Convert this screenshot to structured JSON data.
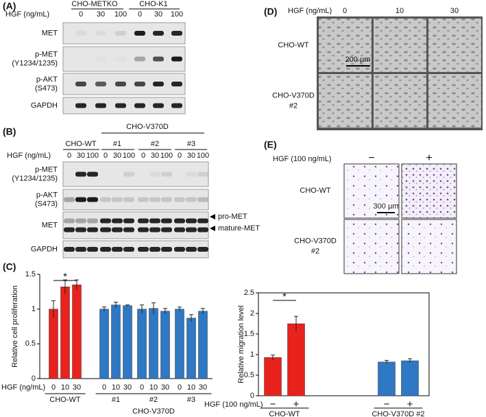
{
  "panel_a": {
    "label": "(A)",
    "hgf_label": "HGF (ng/mL)",
    "groups": [
      "CHO-METKO",
      "CHO-K1"
    ],
    "doses": [
      "0",
      "30",
      "100",
      "0",
      "30",
      "100"
    ],
    "rows": [
      [
        "MET"
      ],
      [
        "p-MET",
        "(Y1234/1235)"
      ],
      [
        "p-AKT",
        "(S473)"
      ],
      [
        "GAPDH"
      ]
    ]
  },
  "panel_b": {
    "label": "(B)",
    "supergroup": "CHO-V370D",
    "groups": [
      "CHO-WT",
      "#1",
      "#2",
      "#3"
    ],
    "hgf_label": "HGF (ng/mL)",
    "doses": [
      "0",
      "30",
      "100",
      "0",
      "30",
      "100",
      "0",
      "30",
      "100",
      "0",
      "30",
      "100"
    ],
    "rows": [
      [
        "p-MET",
        "(Y1234/1235)"
      ],
      [
        "p-AKT",
        "(S473)"
      ],
      [
        "MET"
      ],
      [
        "GAPDH"
      ]
    ],
    "markers": [
      "pro-MET",
      "mature-MET"
    ]
  },
  "panel_d": {
    "label": "(D)",
    "hgf_label": "HGF (ng/mL)",
    "doses": [
      "0",
      "10",
      "30"
    ],
    "rows": [
      [
        "CHO-WT"
      ],
      [
        "CHO-V370D",
        "#2"
      ]
    ],
    "scale_bar": "200 µm"
  },
  "panel_e": {
    "label": "(E)",
    "hgf_label": "HGF (100 ng/mL)",
    "conditions": [
      "−",
      "+"
    ],
    "rows": [
      [
        "CHO-WT"
      ],
      [
        "CHO-V370D",
        "#2"
      ]
    ],
    "scale_bar": "300 µm"
  },
  "chart_data": [
    {
      "type": "bar",
      "panel_label": "(C)",
      "ylabel": "Relative cell proliferation",
      "xlabel": "HGF (ng/mL)",
      "ylim": [
        0,
        1.5
      ],
      "yticks": [
        0,
        0.5,
        1,
        1.5
      ],
      "group_title": "CHO-V370D",
      "significance": "*",
      "groups": [
        {
          "name": "CHO-WT",
          "color": "#e8231d",
          "categories": [
            "0",
            "10",
            "30"
          ],
          "values": [
            1.0,
            1.32,
            1.35
          ],
          "errors": [
            0.12,
            0.1,
            0.07
          ]
        },
        {
          "name": "#1",
          "color": "#2f78c4",
          "categories": [
            "0",
            "10",
            "30"
          ],
          "values": [
            1.0,
            1.06,
            1.05
          ],
          "errors": [
            0.03,
            0.04,
            0.01
          ]
        },
        {
          "name": "#2",
          "color": "#2f78c4",
          "categories": [
            "0",
            "10",
            "30"
          ],
          "values": [
            1.0,
            1.01,
            0.97
          ],
          "errors": [
            0.06,
            0.08,
            0.04
          ]
        },
        {
          "name": "#3",
          "color": "#2f78c4",
          "categories": [
            "0",
            "10",
            "30"
          ],
          "values": [
            1.0,
            0.87,
            0.97
          ],
          "errors": [
            0.03,
            0.05,
            0.04
          ]
        }
      ]
    },
    {
      "type": "bar",
      "panel_label": null,
      "ylabel": "Relative migration level",
      "xlabel": "HGF (100 ng/mL)",
      "ylim": [
        0,
        2.5
      ],
      "yticks": [
        0,
        0.5,
        1,
        1.5,
        2,
        2.5
      ],
      "group_title": null,
      "significance": "*",
      "groups": [
        {
          "name": "CHO-WT",
          "color": "#e8231d",
          "categories": [
            "−",
            "+"
          ],
          "values": [
            0.93,
            1.75
          ],
          "errors": [
            0.06,
            0.18
          ]
        },
        {
          "name": "CHO-V370D #2",
          "color": "#2f78c4",
          "categories": [
            "−",
            "+"
          ],
          "values": [
            0.82,
            0.85
          ],
          "errors": [
            0.04,
            0.05
          ]
        }
      ]
    }
  ]
}
